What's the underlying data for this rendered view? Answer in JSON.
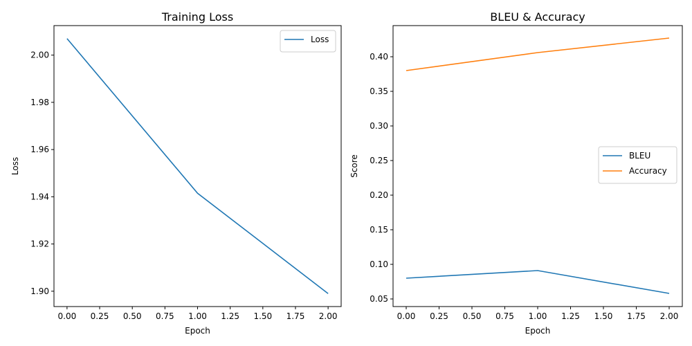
{
  "chart_data": [
    {
      "type": "line",
      "title": "Training Loss",
      "xlabel": "Epoch",
      "ylabel": "Loss",
      "x": [
        0,
        1,
        2
      ],
      "xlim": [
        -0.1,
        2.1
      ],
      "ylim": [
        1.8935,
        2.0125
      ],
      "xticks": [
        0.0,
        0.25,
        0.5,
        0.75,
        1.0,
        1.25,
        1.5,
        1.75,
        2.0
      ],
      "xtick_labels": [
        "0.00",
        "0.25",
        "0.50",
        "0.75",
        "1.00",
        "1.25",
        "1.50",
        "1.75",
        "2.00"
      ],
      "yticks": [
        1.9,
        1.92,
        1.94,
        1.96,
        1.98,
        2.0
      ],
      "ytick_labels": [
        "1.90",
        "1.92",
        "1.94",
        "1.96",
        "1.98",
        "2.00"
      ],
      "series": [
        {
          "name": "Loss",
          "values": [
            2.007,
            1.9415,
            1.899
          ],
          "color": "#1f77b4"
        }
      ],
      "legend": "upper-right",
      "grid": false
    },
    {
      "type": "line",
      "title": "BLEU & Accuracy",
      "xlabel": "Epoch",
      "ylabel": "Score",
      "x": [
        0,
        1,
        2
      ],
      "xlim": [
        -0.1,
        2.1
      ],
      "ylim": [
        0.039,
        0.445
      ],
      "xticks": [
        0.0,
        0.25,
        0.5,
        0.75,
        1.0,
        1.25,
        1.5,
        1.75,
        2.0
      ],
      "xtick_labels": [
        "0.00",
        "0.25",
        "0.50",
        "0.75",
        "1.00",
        "1.25",
        "1.50",
        "1.75",
        "2.00"
      ],
      "yticks": [
        0.05,
        0.1,
        0.15,
        0.2,
        0.25,
        0.3,
        0.35,
        0.4
      ],
      "ytick_labels": [
        "0.05",
        "0.10",
        "0.15",
        "0.20",
        "0.25",
        "0.30",
        "0.35",
        "0.40"
      ],
      "series": [
        {
          "name": "BLEU",
          "values": [
            0.08,
            0.091,
            0.058
          ],
          "color": "#1f77b4"
        },
        {
          "name": "Accuracy",
          "values": [
            0.38,
            0.406,
            0.427
          ],
          "color": "#ff7f0e"
        }
      ],
      "legend": "center-right",
      "grid": false
    }
  ]
}
